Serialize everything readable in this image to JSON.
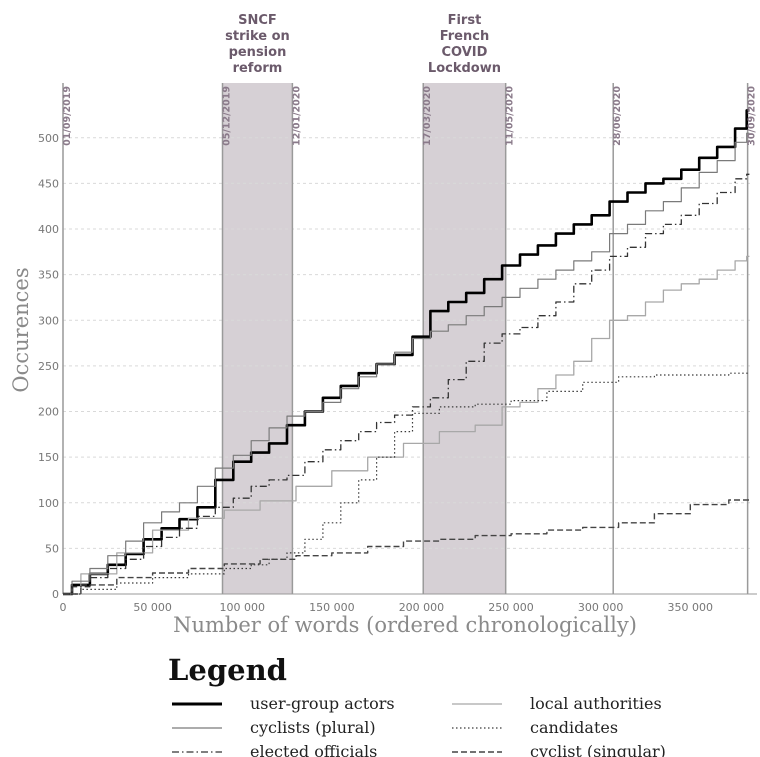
{
  "chart_data": {
    "type": "line",
    "xlabel": "Number of words (ordered chronologically)",
    "ylabel": "Occurences",
    "xlim": [
      0,
      385000
    ],
    "ylim": [
      0,
      560
    ],
    "x_ticks": [
      0,
      50000,
      100000,
      150000,
      200000,
      250000,
      300000,
      350000
    ],
    "x_tick_labels": [
      "0",
      "50 000",
      "100 000",
      "150 000",
      "200 000",
      "250 000",
      "300 000",
      "350 000"
    ],
    "y_ticks": [
      0,
      50,
      100,
      150,
      200,
      250,
      300,
      350,
      400,
      450,
      500
    ],
    "y_tick_labels": [
      "0",
      "50",
      "100",
      "150",
      "200",
      "250",
      "300",
      "350",
      "400",
      "450",
      "500"
    ],
    "grid": true,
    "date_markers": [
      {
        "x": 0,
        "label": "01/09/2019"
      },
      {
        "x": 89000,
        "label": "05/12/2019"
      },
      {
        "x": 128000,
        "label": "12/01/2020"
      },
      {
        "x": 201000,
        "label": "17/03/2020"
      },
      {
        "x": 247000,
        "label": "11/05/2020"
      },
      {
        "x": 307000,
        "label": "28/06/2020"
      },
      {
        "x": 382000,
        "label": "30/09/2020"
      }
    ],
    "periods": [
      {
        "x_start": 89000,
        "x_end": 128000,
        "label_lines": [
          "SNCF",
          "strike on",
          "pension",
          "reform"
        ]
      },
      {
        "x_start": 201000,
        "x_end": 247000,
        "label_lines": [
          "First",
          "French",
          "COVID",
          "Lockdown"
        ]
      }
    ],
    "legend": {
      "title": "Legend",
      "entries": [
        {
          "name": "user-group actors",
          "style": "thick"
        },
        {
          "name": "local authorities",
          "style": "thin-light"
        },
        {
          "name": "cyclists (plural)",
          "style": "thin"
        },
        {
          "name": "candidates",
          "style": "dotted"
        },
        {
          "name": "elected officials",
          "style": "dashdot"
        },
        {
          "name": "cyclist (singular)",
          "style": "dashed"
        }
      ]
    },
    "series": [
      {
        "name": "user-group actors",
        "style": "thick",
        "color": "#000000",
        "x": [
          0,
          10000,
          20000,
          30000,
          40000,
          50000,
          60000,
          70000,
          80000,
          90000,
          100000,
          110000,
          120000,
          130000,
          140000,
          150000,
          160000,
          170000,
          180000,
          190000,
          200000,
          210000,
          220000,
          230000,
          240000,
          250000,
          260000,
          270000,
          280000,
          290000,
          300000,
          310000,
          320000,
          330000,
          340000,
          350000,
          360000,
          370000,
          380000,
          383000
        ],
        "y": [
          0,
          10,
          22,
          32,
          44,
          60,
          72,
          82,
          95,
          125,
          145,
          155,
          165,
          185,
          200,
          215,
          228,
          242,
          252,
          262,
          282,
          310,
          320,
          330,
          345,
          360,
          372,
          382,
          395,
          405,
          415,
          430,
          440,
          450,
          455,
          465,
          478,
          490,
          510,
          530
        ]
      },
      {
        "name": "local authorities",
        "style": "thin-light",
        "color": "#a8a8a8",
        "x": [
          0,
          20000,
          40000,
          60000,
          80000,
          100000,
          120000,
          140000,
          160000,
          180000,
          200000,
          220000,
          240000,
          250000,
          260000,
          270000,
          280000,
          290000,
          300000,
          310000,
          320000,
          330000,
          340000,
          350000,
          360000,
          370000,
          380000,
          383000
        ],
        "y": [
          0,
          22,
          45,
          70,
          83,
          92,
          102,
          118,
          135,
          150,
          165,
          178,
          185,
          205,
          210,
          225,
          240,
          255,
          280,
          300,
          305,
          320,
          333,
          340,
          345,
          355,
          365,
          370
        ]
      },
      {
        "name": "cyclists (plural)",
        "style": "thin",
        "color": "#7a7a7a",
        "x": [
          0,
          10000,
          20000,
          30000,
          40000,
          50000,
          60000,
          70000,
          80000,
          90000,
          100000,
          110000,
          120000,
          130000,
          140000,
          150000,
          160000,
          170000,
          180000,
          190000,
          200000,
          210000,
          220000,
          230000,
          240000,
          250000,
          260000,
          270000,
          280000,
          290000,
          300000,
          310000,
          320000,
          330000,
          340000,
          350000,
          360000,
          370000,
          380000,
          383000
        ],
        "y": [
          0,
          14,
          28,
          42,
          58,
          78,
          90,
          100,
          118,
          138,
          152,
          168,
          182,
          195,
          200,
          210,
          225,
          238,
          252,
          265,
          280,
          288,
          295,
          305,
          315,
          325,
          335,
          345,
          355,
          365,
          375,
          395,
          405,
          420,
          430,
          445,
          462,
          475,
          495,
          505
        ]
      },
      {
        "name": "candidates",
        "style": "dotted",
        "color": "#3a3a3a",
        "x": [
          0,
          20000,
          40000,
          60000,
          80000,
          100000,
          110000,
          120000,
          130000,
          140000,
          150000,
          160000,
          170000,
          180000,
          190000,
          200000,
          220000,
          240000,
          260000,
          280000,
          300000,
          320000,
          340000,
          360000,
          383000
        ],
        "y": [
          0,
          5,
          12,
          18,
          22,
          28,
          32,
          38,
          45,
          60,
          78,
          100,
          125,
          150,
          178,
          198,
          205,
          208,
          212,
          222,
          232,
          238,
          240,
          240,
          242
        ]
      },
      {
        "name": "elected officials",
        "style": "dashdot",
        "color": "#333333",
        "x": [
          0,
          10000,
          20000,
          30000,
          40000,
          50000,
          60000,
          70000,
          80000,
          90000,
          100000,
          110000,
          120000,
          130000,
          140000,
          150000,
          160000,
          170000,
          180000,
          190000,
          200000,
          210000,
          220000,
          230000,
          240000,
          250000,
          260000,
          270000,
          280000,
          290000,
          300000,
          310000,
          320000,
          330000,
          340000,
          350000,
          360000,
          370000,
          380000,
          383000
        ],
        "y": [
          0,
          8,
          18,
          28,
          38,
          52,
          62,
          72,
          85,
          95,
          105,
          118,
          125,
          130,
          145,
          158,
          168,
          178,
          188,
          196,
          205,
          215,
          235,
          255,
          275,
          285,
          292,
          305,
          320,
          340,
          355,
          370,
          380,
          395,
          405,
          415,
          428,
          440,
          455,
          460
        ]
      },
      {
        "name": "cyclist (singular)",
        "style": "dashed",
        "color": "#444444",
        "x": [
          0,
          20000,
          40000,
          60000,
          80000,
          100000,
          120000,
          140000,
          160000,
          180000,
          200000,
          220000,
          240000,
          260000,
          280000,
          300000,
          320000,
          340000,
          360000,
          383000
        ],
        "y": [
          0,
          10,
          18,
          23,
          28,
          33,
          38,
          42,
          45,
          52,
          58,
          60,
          64,
          66,
          70,
          73,
          78,
          88,
          98,
          103
        ]
      }
    ]
  }
}
